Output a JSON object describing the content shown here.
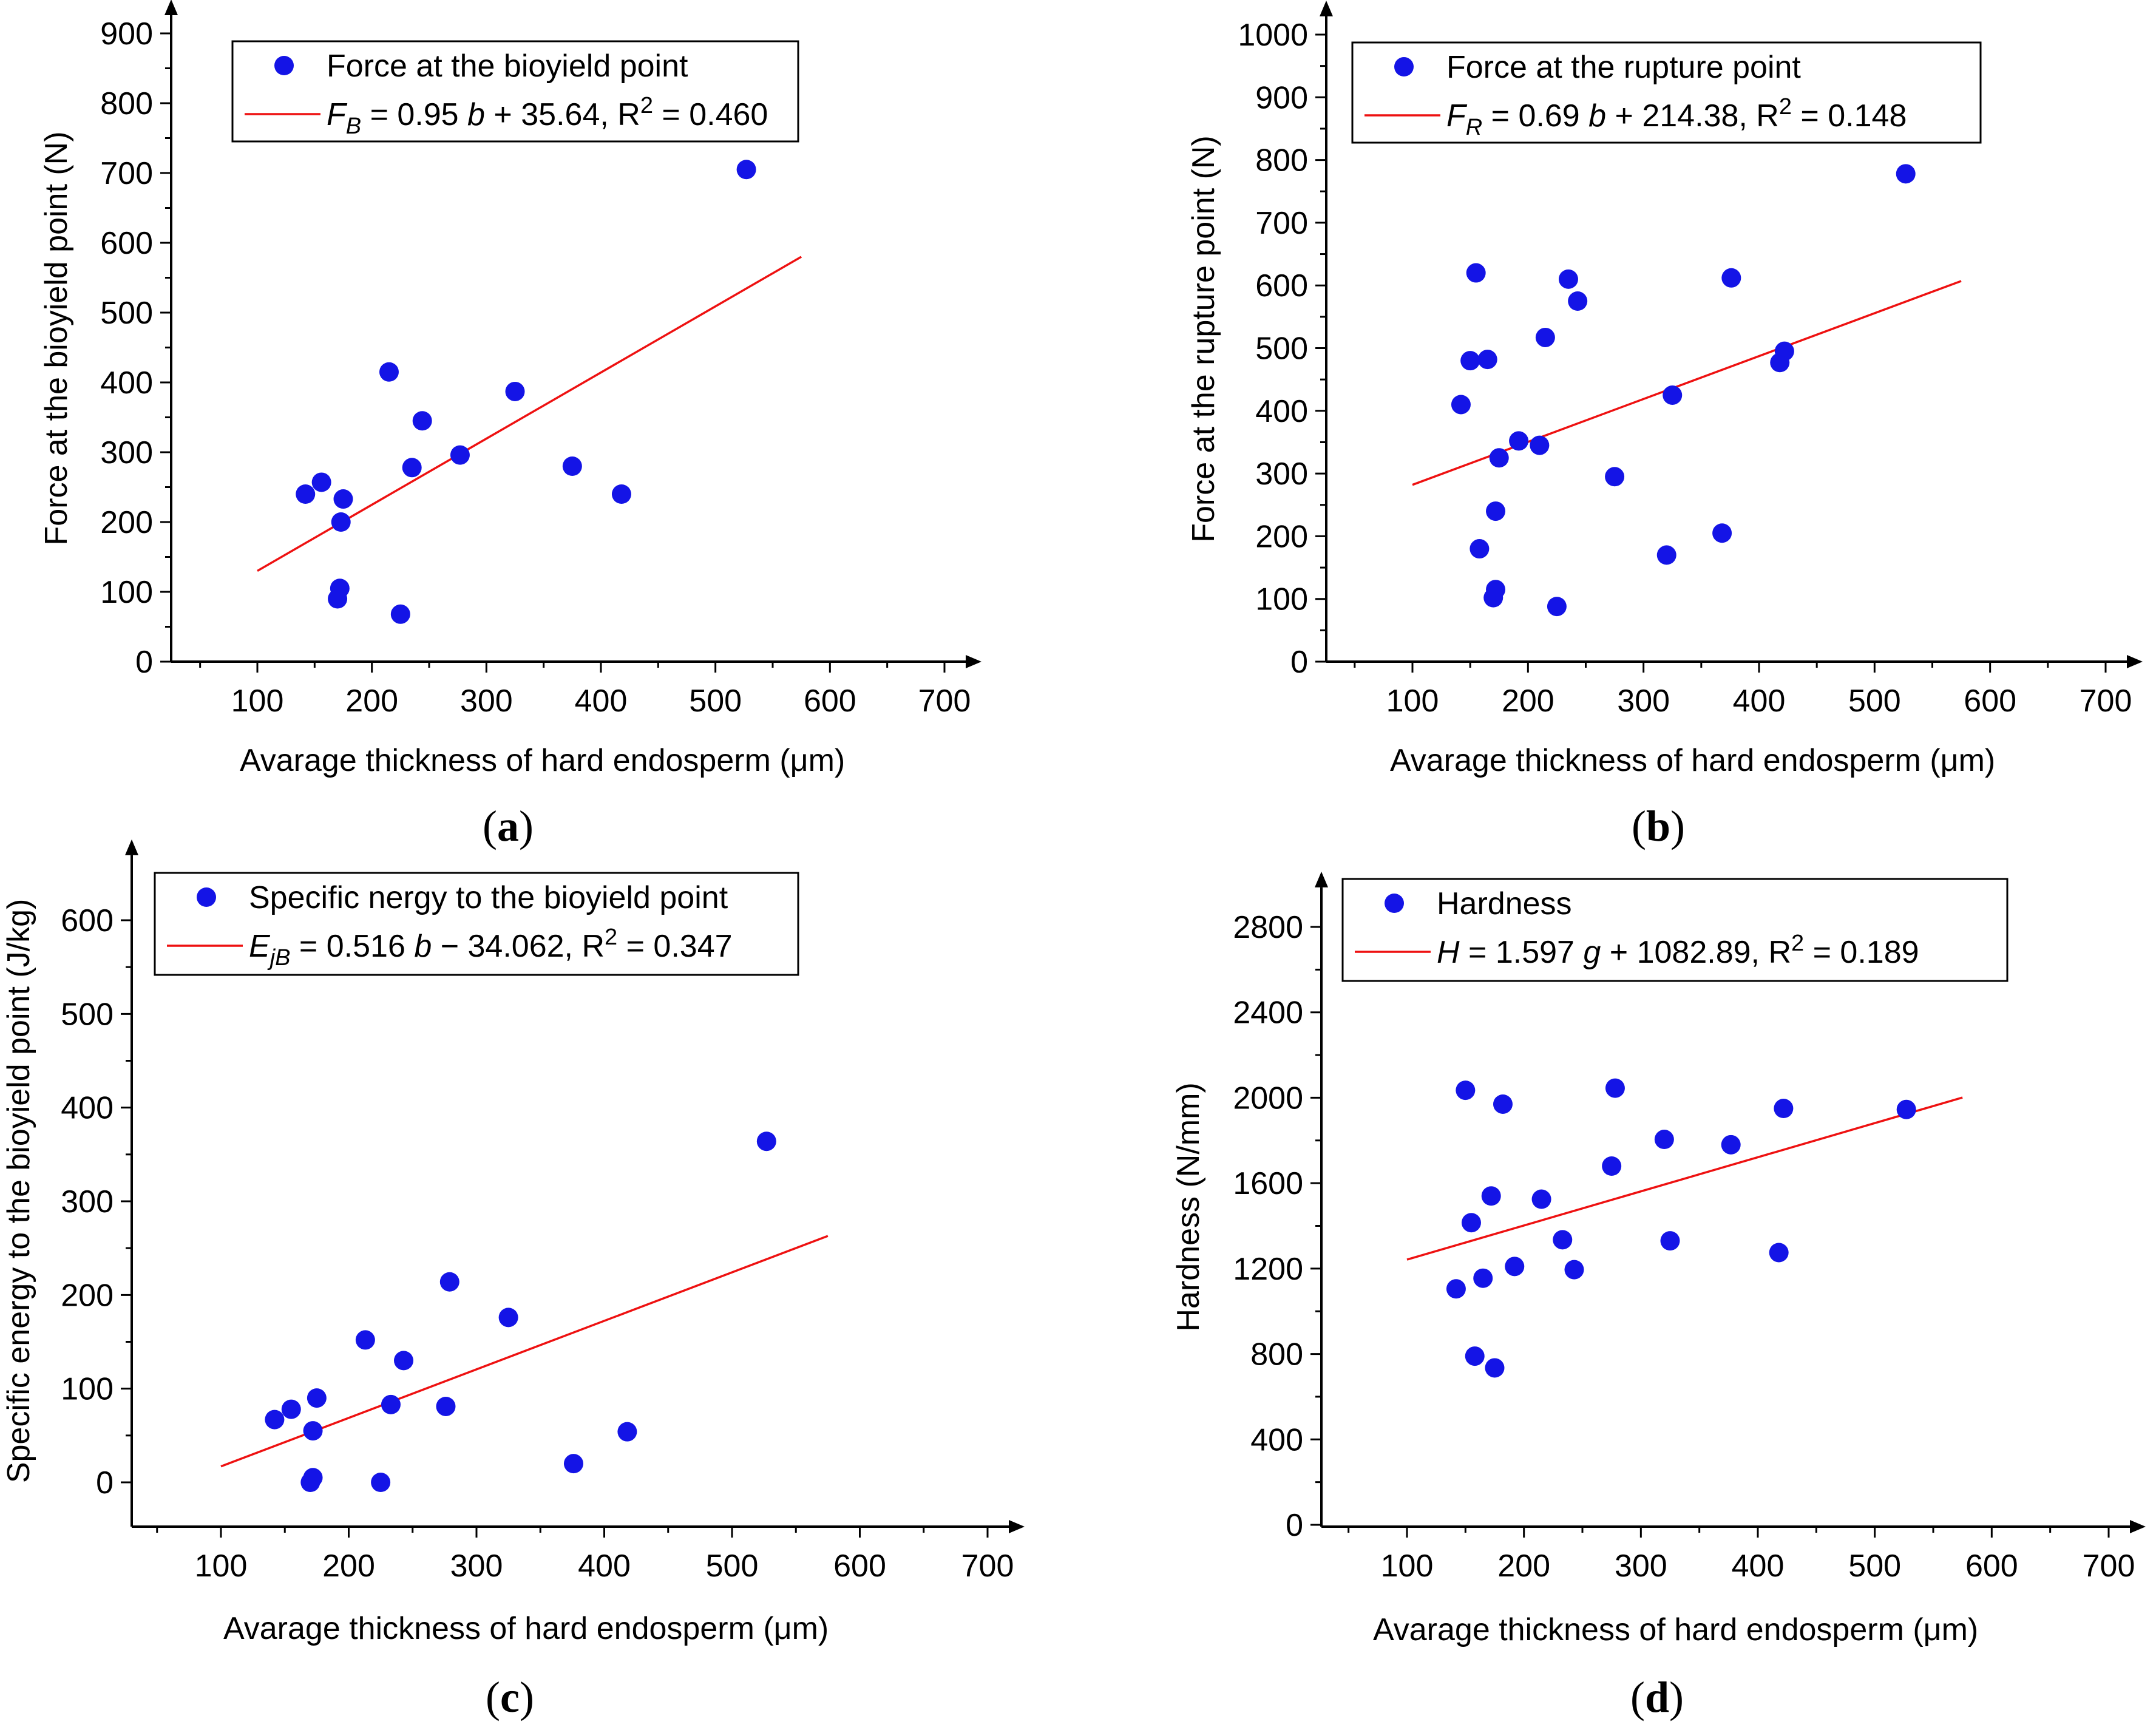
{
  "colors": {
    "point": "#1414E6",
    "line": "#EE1111",
    "axis": "#000000"
  },
  "panels": [
    {
      "label": "a",
      "caption_open": "(",
      "caption_close": ")"
    },
    {
      "label": "b",
      "caption_open": "(",
      "caption_close": ")"
    },
    {
      "label": "c",
      "caption_open": "(",
      "caption_close": ")"
    },
    {
      "label": "d",
      "caption_open": "(",
      "caption_close": ")"
    }
  ],
  "chart_data": [
    {
      "type": "scatter",
      "xlabel": "Avarage thickness of hard endosperm (μm)",
      "ylabel": "Force at the bioyield point (N)",
      "xlim": [
        30,
        700
      ],
      "ylim": [
        0,
        900
      ],
      "xticks": [
        100,
        200,
        300,
        400,
        500,
        600,
        700
      ],
      "yticks": [
        0,
        100,
        200,
        300,
        400,
        500,
        600,
        700,
        800,
        900
      ],
      "legend_position": "top-left",
      "series": [
        {
          "name": "Force at the bioyield point",
          "kind": "points",
          "x": [
            142,
            156,
            170,
            172,
            173,
            175,
            215,
            225,
            235,
            244,
            277,
            325,
            375,
            418,
            527
          ],
          "y": [
            240,
            257,
            90,
            105,
            200,
            233,
            415,
            68,
            278,
            345,
            296,
            387,
            280,
            240,
            705
          ]
        },
        {
          "kind": "fit",
          "label_parts": [
            "F",
            "B",
            " = 0.95 ",
            "b",
            " + 35.64, R",
            "2",
            " = 0.460"
          ],
          "x": [
            100,
            575
          ],
          "y": [
            130,
            580
          ]
        }
      ]
    },
    {
      "type": "scatter",
      "xlabel": "Avarage thickness of hard endosperm (μm)",
      "ylabel": "Force at the rupture point (N)",
      "xlim": [
        30,
        700
      ],
      "ylim": [
        0,
        1000
      ],
      "xticks": [
        100,
        200,
        300,
        400,
        500,
        600,
        700
      ],
      "yticks": [
        0,
        100,
        200,
        300,
        400,
        500,
        600,
        700,
        800,
        900,
        1000
      ],
      "legend_position": "top-left",
      "series": [
        {
          "name": "Force at the rupture point",
          "kind": "points",
          "x": [
            142,
            150,
            155,
            158,
            165,
            170,
            172,
            172,
            175,
            192,
            210,
            215,
            225,
            235,
            243,
            275,
            320,
            325,
            368,
            376,
            418,
            422,
            527
          ],
          "y": [
            410,
            480,
            620,
            180,
            482,
            102,
            115,
            240,
            325,
            352,
            345,
            517,
            88,
            610,
            575,
            295,
            170,
            425,
            205,
            612,
            477,
            495,
            778
          ]
        },
        {
          "kind": "fit",
          "label_parts": [
            "F",
            "R",
            " = 0.69 ",
            "b",
            " + 214.38, R",
            "2",
            " = 0.148"
          ],
          "x": [
            100,
            575
          ],
          "y": [
            282,
            607
          ]
        }
      ]
    },
    {
      "type": "scatter",
      "xlabel": "Avarage thickness of hard endosperm (μm)",
      "ylabel": "Specific energy to the bioyield point (J/kg)",
      "xlim": [
        30,
        700
      ],
      "ylim": [
        -50,
        650
      ],
      "xticks": [
        100,
        200,
        300,
        400,
        500,
        600,
        700
      ],
      "yticks": [
        0,
        100,
        200,
        300,
        400,
        500,
        600
      ],
      "legend_position": "top-left",
      "series": [
        {
          "name": "Specific nergy to the bioyield point",
          "kind": "points",
          "x": [
            142,
            155,
            170,
            172,
            172,
            175,
            213,
            225,
            233,
            243,
            276,
            279,
            325,
            376,
            418,
            527
          ],
          "y": [
            67,
            78,
            0,
            5,
            55,
            90,
            152,
            0,
            83,
            130,
            81,
            214,
            176,
            20,
            54,
            364
          ]
        },
        {
          "kind": "fit",
          "label_parts": [
            "E",
            "jB",
            " = 0.516 ",
            "b",
            " − 34.062, R",
            "2",
            " = 0.347"
          ],
          "x": [
            100,
            575
          ],
          "y": [
            17,
            263
          ]
        }
      ]
    },
    {
      "type": "scatter",
      "xlabel": "Avarage thickness of hard endosperm (μm)",
      "ylabel": "Hardness (N/mm)",
      "xlim": [
        30,
        700
      ],
      "ylim": [
        0,
        2900
      ],
      "xticks": [
        100,
        200,
        300,
        400,
        500,
        600,
        700
      ],
      "yticks": [
        0,
        400,
        800,
        1200,
        1600,
        2000,
        2400,
        2800
      ],
      "legend_position": "top-left",
      "series": [
        {
          "name": "Hardness",
          "kind": "points",
          "x": [
            142,
            150,
            155,
            158,
            165,
            172,
            175,
            182,
            192,
            215,
            233,
            243,
            275,
            278,
            320,
            325,
            377,
            418,
            422,
            527
          ],
          "y": [
            1105,
            2035,
            1415,
            790,
            1155,
            1540,
            735,
            1970,
            1210,
            1525,
            1335,
            1195,
            1680,
            2045,
            1805,
            1330,
            1780,
            1275,
            1950,
            1945
          ]
        },
        {
          "kind": "fit",
          "label_parts": [
            "H",
            "",
            " = 1.597 ",
            "g",
            " + 1082.89, R",
            "2",
            " = 0.189"
          ],
          "x": [
            100,
            575
          ],
          "y": [
            1242,
            2001
          ]
        }
      ]
    }
  ]
}
